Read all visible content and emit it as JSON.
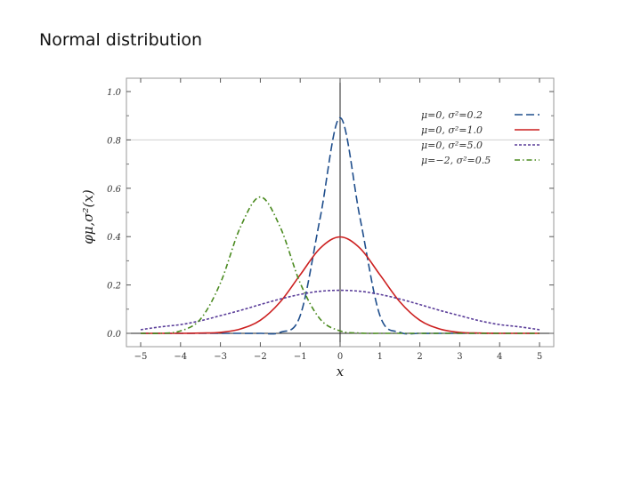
{
  "slide": {
    "title": "Normal distribution"
  },
  "chart_data": {
    "type": "line",
    "xlabel": "x",
    "ylabel": "φμ,σ²(x)",
    "xlim": [
      -5.4,
      5.4
    ],
    "ylim": [
      -0.01,
      1.02
    ],
    "xticks": [
      "−5",
      "−4",
      "−3",
      "−2",
      "−1",
      "0",
      "1",
      "2",
      "3",
      "4",
      "5"
    ],
    "yticks": [
      "0.0",
      "0.2",
      "0.4",
      "0.6",
      "0.8",
      "1.0"
    ],
    "grid": "horizontal line at 0.8",
    "legend_position": "top-right",
    "x": [
      -5,
      -4.5,
      -4,
      -3.5,
      -3,
      -2.5,
      -2,
      -1.5,
      -1,
      -0.5,
      0,
      0.5,
      1,
      1.5,
      2,
      2.5,
      3,
      3.5,
      4,
      4.5,
      5
    ],
    "series": [
      {
        "name": "μ=0,  σ²=0.2",
        "color": "#1f4e8c",
        "style": "long-dash",
        "values": [
          0.0,
          0.0,
          0.0,
          0.0,
          0.0,
          0.0,
          0.0,
          0.004,
          0.073,
          0.477,
          0.892,
          0.477,
          0.073,
          0.004,
          0.0,
          0.0,
          0.0,
          0.0,
          0.0,
          0.0,
          0.0
        ]
      },
      {
        "name": "μ=0,  σ²=1.0",
        "color": "#cc1f1f",
        "style": "solid",
        "values": [
          0.0,
          0.0,
          0.0,
          0.001,
          0.004,
          0.018,
          0.054,
          0.13,
          0.242,
          0.352,
          0.399,
          0.352,
          0.242,
          0.13,
          0.054,
          0.018,
          0.004,
          0.001,
          0.0,
          0.0,
          0.0
        ]
      },
      {
        "name": "μ=0,  σ²=5.0",
        "color": "#5a3d99",
        "style": "short-dash",
        "values": [
          0.015,
          0.027,
          0.036,
          0.052,
          0.073,
          0.095,
          0.119,
          0.142,
          0.161,
          0.174,
          0.178,
          0.174,
          0.161,
          0.142,
          0.119,
          0.095,
          0.073,
          0.052,
          0.036,
          0.027,
          0.015
        ]
      },
      {
        "name": "μ=−2, σ²=0.5",
        "color": "#4a8a1f",
        "style": "dash-dot",
        "values": [
          0.0,
          0.0,
          0.01,
          0.059,
          0.208,
          0.439,
          0.564,
          0.439,
          0.208,
          0.059,
          0.01,
          0.001,
          0.0,
          0.0,
          0.0,
          0.0,
          0.0,
          0.0,
          0.0,
          0.0,
          0.0
        ]
      }
    ]
  }
}
